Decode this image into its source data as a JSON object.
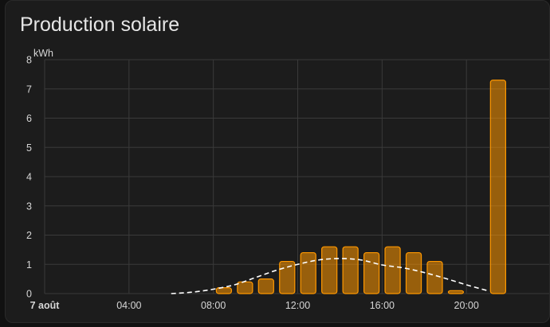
{
  "card": {
    "title": "Production solaire"
  },
  "chart_data": {
    "type": "bar",
    "title": "Production solaire",
    "ylabel": "kWh",
    "ylim": [
      0,
      8
    ],
    "yticks": [
      0,
      1,
      2,
      3,
      4,
      5,
      6,
      7,
      8
    ],
    "xlim": [
      0,
      24
    ],
    "xticks": [
      {
        "hour": 0,
        "label": "7 août",
        "bold": true
      },
      {
        "hour": 4,
        "label": "04:00",
        "bold": false
      },
      {
        "hour": 8,
        "label": "08:00",
        "bold": false
      },
      {
        "hour": 12,
        "label": "12:00",
        "bold": false
      },
      {
        "hour": 16,
        "label": "16:00",
        "bold": false
      },
      {
        "hour": 20,
        "label": "20:00",
        "bold": false
      }
    ],
    "grid": true,
    "bar_color": "#ff9800",
    "forecast_color": "#ffffff",
    "series": [
      {
        "kind": "bar",
        "x": [
          "08:00",
          "09:00",
          "10:00",
          "11:00",
          "12:00",
          "13:00",
          "14:00",
          "15:00",
          "16:00",
          "17:00",
          "18:00",
          "19:00",
          "21:00"
        ],
        "values": [
          0.2,
          0.4,
          0.5,
          1.1,
          1.4,
          1.6,
          1.6,
          1.4,
          1.6,
          1.4,
          1.1,
          0.1,
          7.3
        ]
      },
      {
        "kind": "line",
        "style": "dashed",
        "x": [
          "06:00",
          "07:00",
          "08:00",
          "09:00",
          "10:00",
          "11:00",
          "12:00",
          "13:00",
          "14:00",
          "15:00",
          "16:00",
          "17:00",
          "18:00",
          "19:00",
          "20:00",
          "21:00"
        ],
        "values": [
          0.0,
          0.05,
          0.15,
          0.3,
          0.55,
          0.8,
          1.0,
          1.15,
          1.2,
          1.15,
          0.98,
          0.88,
          0.72,
          0.52,
          0.3,
          0.1
        ]
      }
    ]
  }
}
